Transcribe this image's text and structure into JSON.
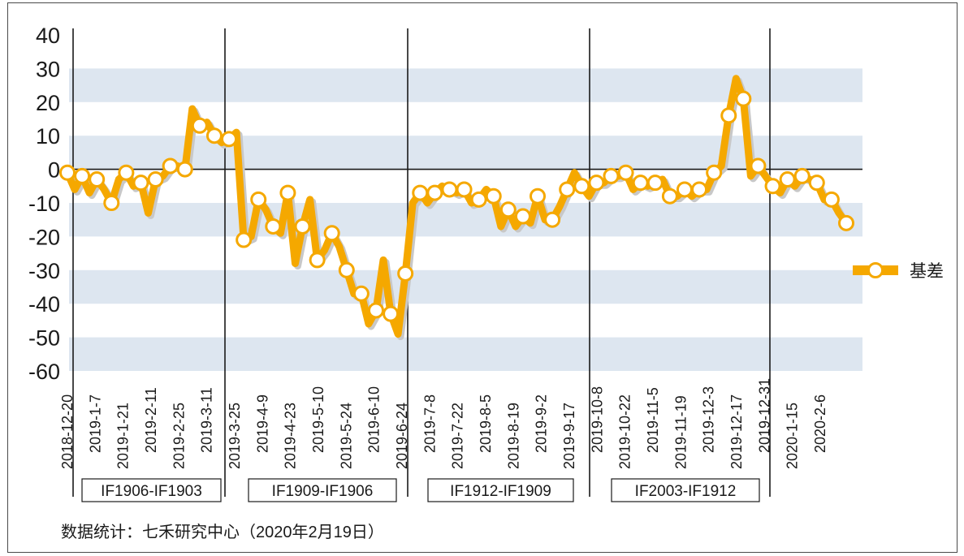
{
  "chart_data": {
    "type": "line",
    "ylim": [
      -60,
      40
    ],
    "yticks": [
      40,
      30,
      20,
      10,
      0,
      -10,
      -20,
      -30,
      -40,
      -50,
      -60
    ],
    "grid": "alternating horizontal bands",
    "legend_position": "right",
    "xtick_labels": [
      "2018-12-20",
      "2019-1-7",
      "2019-1-21",
      "2019-2-11",
      "2019-2-25",
      "2019-3-11",
      "2019-3-25",
      "2019-4-9",
      "2019-4-23",
      "2019-5-10",
      "2019-5-24",
      "2019-6-10",
      "2019-6-24",
      "2019-7-8",
      "2019-7-22",
      "2019-8-5",
      "2019-8-19",
      "2019-9-2",
      "2019-9-17",
      "2019-10-8",
      "2019-10-22",
      "2019-11-5",
      "2019-11-19",
      "2019-12-3",
      "2019-12-17",
      "2019-12-31",
      "2020-1-15",
      "2020-2-6"
    ],
    "contracts": [
      "IF1906-IF1903",
      "IF1909-IF1906",
      "IF1912-IF1909",
      "IF2003-IF1912"
    ],
    "series": [
      {
        "name": "基差",
        "color": "#f5a800",
        "values": [
          -1,
          -6,
          -2,
          -7,
          -3,
          -6,
          -10,
          -3,
          -1,
          -5,
          -4,
          -13,
          -3,
          -2,
          1,
          1,
          0,
          18,
          13,
          14,
          10,
          8,
          9,
          11,
          -21,
          -20,
          -9,
          -12,
          -17,
          -19,
          -7,
          -28,
          -17,
          -9,
          -27,
          -24,
          -19,
          -23,
          -30,
          -37,
          -37,
          -46,
          -42,
          -27,
          -43,
          -49,
          -31,
          -10,
          -7,
          -10,
          -7,
          -5,
          -6,
          -7,
          -6,
          -10,
          -9,
          -6,
          -8,
          -17,
          -12,
          -17,
          -14,
          -16,
          -8,
          -15,
          -15,
          -11,
          -6,
          -1,
          -5,
          -8,
          -4,
          -4,
          -2,
          -2,
          -1,
          -6,
          -4,
          -5,
          -4,
          -3,
          -8,
          -8,
          -6,
          -8,
          -6,
          -6,
          -1,
          1,
          16,
          27,
          21,
          -2,
          1,
          -2,
          -5,
          -7,
          -3,
          -5,
          -2,
          -3,
          -4,
          -9,
          -9,
          -13,
          -16
        ]
      }
    ]
  },
  "legend": {
    "label": "基差"
  },
  "footer": {
    "text": "数据统计：七禾研究中心（2020年2月19日）"
  }
}
